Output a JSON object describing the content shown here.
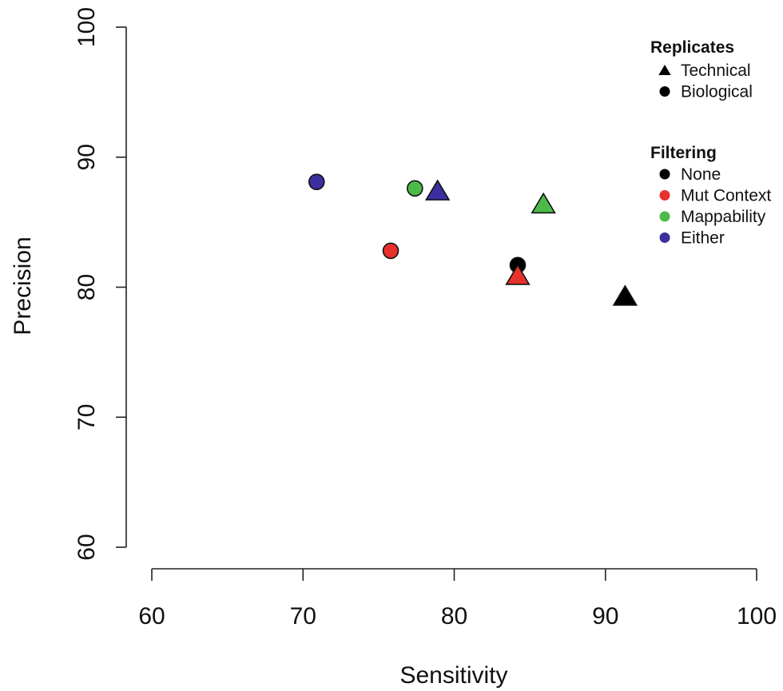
{
  "chart_data": {
    "type": "scatter",
    "xlabel": "Sensitivity",
    "ylabel": "Precision",
    "xlim": [
      60,
      100
    ],
    "ylim": [
      60,
      100
    ],
    "x_ticks": [
      "60",
      "70",
      "80",
      "90",
      "100"
    ],
    "y_ticks": [
      "60",
      "70",
      "80",
      "90",
      "100"
    ],
    "grid": false,
    "legend_position": "top-right",
    "legends": [
      {
        "title": "Replicates",
        "items": [
          {
            "label": "Technical",
            "shape": "triangle",
            "color": "#000000"
          },
          {
            "label": "Biological",
            "shape": "circle",
            "color": "#000000"
          }
        ]
      },
      {
        "title": "Filtering",
        "items": [
          {
            "label": "None",
            "shape": "circle",
            "color": "#000000"
          },
          {
            "label": "Mut Context",
            "shape": "circle",
            "color": "#e8312a"
          },
          {
            "label": "Mappability",
            "shape": "circle",
            "color": "#4cba48"
          },
          {
            "label": "Either",
            "shape": "circle",
            "color": "#3b2fa0"
          }
        ]
      }
    ],
    "points": [
      {
        "filtering": "None",
        "replicate": "Technical",
        "x": 91.3,
        "y": 79.3
      },
      {
        "filtering": "None",
        "replicate": "Biological",
        "x": 84.2,
        "y": 81.7
      },
      {
        "filtering": "Mut Context",
        "replicate": "Technical",
        "x": 84.2,
        "y": 80.9
      },
      {
        "filtering": "Mut Context",
        "replicate": "Biological",
        "x": 75.8,
        "y": 82.8
      },
      {
        "filtering": "Mappability",
        "replicate": "Technical",
        "x": 85.9,
        "y": 86.4
      },
      {
        "filtering": "Mappability",
        "replicate": "Biological",
        "x": 77.4,
        "y": 87.6
      },
      {
        "filtering": "Either",
        "replicate": "Technical",
        "x": 78.9,
        "y": 87.4
      },
      {
        "filtering": "Either",
        "replicate": "Biological",
        "x": 70.9,
        "y": 88.1
      }
    ],
    "colors": {
      "None": "#000000",
      "Mut Context": "#e8312a",
      "Mappability": "#4cba48",
      "Either": "#3b2fa0"
    }
  }
}
